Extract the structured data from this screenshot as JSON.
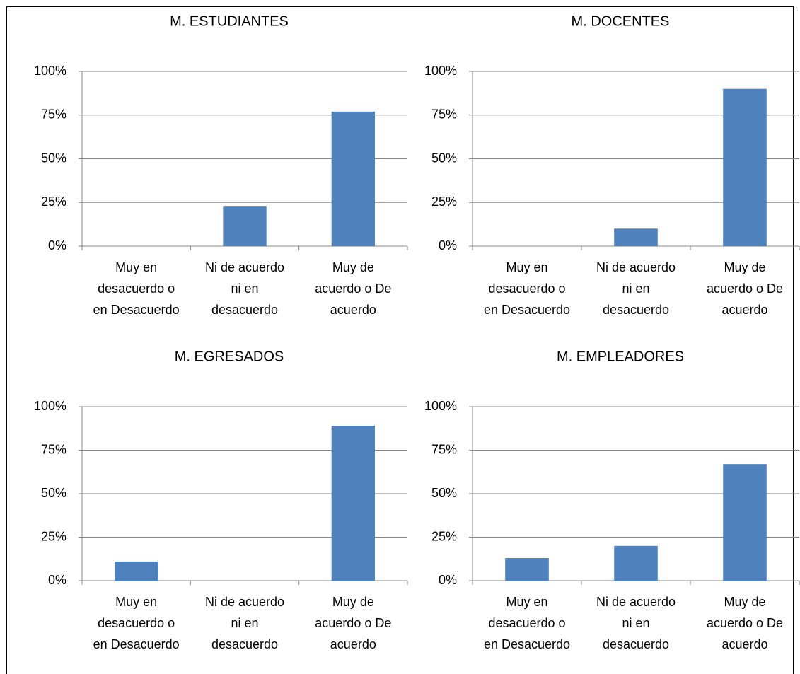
{
  "colors": {
    "bar": "#4f81bd",
    "grid": "#868686",
    "axis": "#868686",
    "text": "#000000",
    "frame": "#000000"
  },
  "chart_data": [
    {
      "type": "bar",
      "title": "M. ESTUDIANTES",
      "categories": [
        "Muy en desacuerdo o en Desacuerdo",
        "Ni de acuerdo ni en desacuerdo",
        "Muy de acuerdo o De acuerdo"
      ],
      "category_label_lines": [
        [
          "Muy en",
          "desacuerdo o",
          "en Desacuerdo"
        ],
        [
          "Ni de acuerdo",
          "ni en",
          "desacuerdo"
        ],
        [
          "Muy de",
          "acuerdo o De",
          "acuerdo"
        ]
      ],
      "values": [
        0,
        23,
        77
      ],
      "yticks": [
        "0%",
        "25%",
        "50%",
        "75%",
        "100%"
      ],
      "ylim": [
        0,
        100
      ],
      "grid": true,
      "legend": "none"
    },
    {
      "type": "bar",
      "title": "M. DOCENTES",
      "categories": [
        "Muy en desacuerdo o en Desacuerdo",
        "Ni de acuerdo ni en desacuerdo",
        "Muy de acuerdo o De acuerdo"
      ],
      "category_label_lines": [
        [
          "Muy en",
          "desacuerdo o",
          "en Desacuerdo"
        ],
        [
          "Ni de acuerdo",
          "ni en",
          "desacuerdo"
        ],
        [
          "Muy de",
          "acuerdo o De",
          "acuerdo"
        ]
      ],
      "values": [
        0,
        10,
        90
      ],
      "yticks": [
        "0%",
        "25%",
        "50%",
        "75%",
        "100%"
      ],
      "ylim": [
        0,
        100
      ],
      "grid": true,
      "legend": "none"
    },
    {
      "type": "bar",
      "title": "M. EGRESADOS",
      "categories": [
        "Muy en desacuerdo o en Desacuerdo",
        "Ni de acuerdo ni en desacuerdo",
        "Muy de acuerdo o De acuerdo"
      ],
      "category_label_lines": [
        [
          "Muy en",
          "desacuerdo o",
          "en Desacuerdo"
        ],
        [
          "Ni de acuerdo",
          "ni en",
          "desacuerdo"
        ],
        [
          "Muy de",
          "acuerdo o De",
          "acuerdo"
        ]
      ],
      "values": [
        11,
        0,
        89
      ],
      "yticks": [
        "0%",
        "25%",
        "50%",
        "75%",
        "100%"
      ],
      "ylim": [
        0,
        100
      ],
      "grid": true,
      "legend": "none"
    },
    {
      "type": "bar",
      "title": "M. EMPLEADORES",
      "categories": [
        "Muy en desacuerdo o en Desacuerdo",
        "Ni de acuerdo ni en desacuerdo",
        "Muy de acuerdo o De acuerdo"
      ],
      "category_label_lines": [
        [
          "Muy en",
          "desacuerdo o",
          "en Desacuerdo"
        ],
        [
          "Ni de acuerdo",
          "ni en",
          "desacuerdo"
        ],
        [
          "Muy de",
          "acuerdo o De",
          "acuerdo"
        ]
      ],
      "values": [
        13,
        20,
        67
      ],
      "yticks": [
        "0%",
        "25%",
        "50%",
        "75%",
        "100%"
      ],
      "ylim": [
        0,
        100
      ],
      "grid": true,
      "legend": "none"
    }
  ]
}
